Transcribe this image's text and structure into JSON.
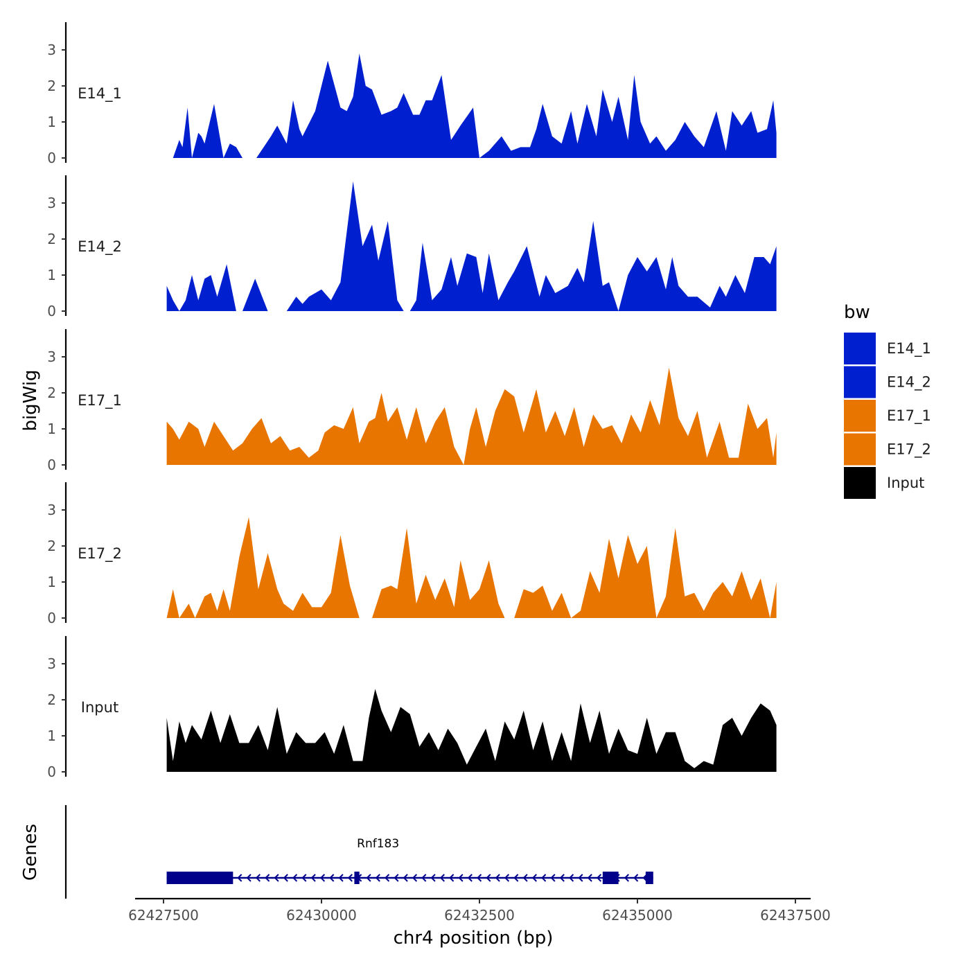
{
  "chart_data": {
    "type": "area",
    "xlabel": "chr4 position (bp)",
    "ylabel": "bigWig",
    "gene_panel_label": "Genes",
    "xlim": [
      62427250,
      62437600
    ],
    "x_ticks": [
      62427500,
      62430000,
      62432500,
      62435000,
      62437500
    ],
    "x_tick_labels": [
      "62427500",
      "62430000",
      "62432500",
      "62435000",
      "62437500"
    ],
    "ylim": [
      0,
      3.7
    ],
    "y_ticks": [
      0,
      1,
      2,
      3
    ],
    "y_tick_labels": [
      "0",
      "1",
      "2",
      "3"
    ],
    "legend": {
      "title": "bw",
      "position": "right",
      "entries": [
        "E14_1",
        "E14_2",
        "E17_1",
        "E17_2",
        "Input"
      ]
    },
    "colors": {
      "E14_1": "#0020d0",
      "E14_2": "#0020d0",
      "E17_1": "#e87500",
      "E17_2": "#e87500",
      "Input": "#000000",
      "gene": "#00008b"
    },
    "series": [
      {
        "name": "E14_1",
        "x": [
          62427650,
          62427750,
          62427800,
          62427880,
          62427950,
          62428050,
          62428100,
          62428150,
          62428300,
          62428450,
          62428550,
          62428650,
          62428750,
          62428850,
          62428920,
          62428970,
          62429200,
          62429300,
          62429450,
          62429550,
          62429650,
          62429700,
          62429900,
          62430100,
          62430300,
          62430400,
          62430500,
          62430600,
          62430700,
          62430800,
          62430950,
          62431100,
          62431200,
          62431300,
          62431450,
          62431550,
          62431650,
          62431750,
          62431900,
          62432050,
          62432200,
          62432400,
          62432500,
          62432650,
          62432850,
          62433000,
          62433150,
          62433300,
          62433400,
          62433500,
          62433650,
          62433800,
          62433950,
          62434050,
          62434200,
          62434350,
          62434450,
          62434600,
          62434700,
          62434850,
          62434950,
          62435050,
          62435200,
          62435300,
          62435450,
          62435600,
          62435750,
          62435900,
          62436050,
          62436250,
          62436400,
          62436500,
          62436650,
          62436800,
          62436900,
          62437050,
          62437150,
          62437200
        ],
        "y": [
          0,
          0.5,
          0.3,
          1.4,
          0,
          0.7,
          0.6,
          0.4,
          1.5,
          0,
          0.4,
          0.3,
          0,
          0,
          0,
          0,
          0.6,
          0.9,
          0.4,
          1.6,
          0.8,
          0.6,
          1.3,
          2.7,
          1.4,
          1.3,
          1.7,
          2.9,
          2.0,
          1.9,
          1.2,
          1.3,
          1.4,
          1.8,
          1.2,
          1.2,
          1.6,
          1.6,
          2.3,
          0.5,
          0.9,
          1.4,
          0,
          0.2,
          0.6,
          0.2,
          0.3,
          0.3,
          0.8,
          1.5,
          0.6,
          0.4,
          1.3,
          0.4,
          1.5,
          0.6,
          1.9,
          1.0,
          1.7,
          0.5,
          2.3,
          1.0,
          0.4,
          0.6,
          0.2,
          0.5,
          1.0,
          0.6,
          0.3,
          1.3,
          0.2,
          1.3,
          0.9,
          1.3,
          0.7,
          0.8,
          1.6,
          0.7
        ]
      },
      {
        "name": "E14_2",
        "x": [
          62427550,
          62427650,
          62427750,
          62427850,
          62427950,
          62428050,
          62428150,
          62428250,
          62428350,
          62428500,
          62428650,
          62428750,
          62428950,
          62429150,
          62429350,
          62429450,
          62429600,
          62429700,
          62429800,
          62430000,
          62430150,
          62430300,
          62430500,
          62430650,
          62430800,
          62430900,
          62431050,
          62431200,
          62431300,
          62431400,
          62431500,
          62431600,
          62431750,
          62431900,
          62432050,
          62432150,
          62432300,
          62432450,
          62432550,
          62432650,
          62432800,
          62432950,
          62433050,
          62433250,
          62433450,
          62433550,
          62433700,
          62433900,
          62434050,
          62434150,
          62434300,
          62434450,
          62434550,
          62434700,
          62434850,
          62435000,
          62435150,
          62435300,
          62435450,
          62435550,
          62435650,
          62435800,
          62435950,
          62436150,
          62436300,
          62436400,
          62436550,
          62436700,
          62436850,
          62437000,
          62437100,
          62437200
        ],
        "y": [
          0.7,
          0.3,
          0,
          0.3,
          1.0,
          0.3,
          0.9,
          1.0,
          0.4,
          1.3,
          0,
          0,
          0.9,
          0,
          0,
          0,
          0.4,
          0.2,
          0.4,
          0.6,
          0.3,
          0.8,
          3.6,
          1.8,
          2.4,
          1.4,
          2.5,
          0.3,
          0,
          0,
          0.3,
          1.9,
          0.3,
          0.6,
          1.5,
          0.7,
          1.6,
          1.5,
          0.5,
          1.6,
          0.3,
          0.8,
          1.1,
          1.8,
          0.4,
          1.0,
          0.5,
          0.7,
          1.2,
          0.8,
          2.5,
          0.7,
          0.8,
          0,
          1.0,
          1.5,
          1.1,
          1.5,
          0.6,
          1.5,
          0.7,
          0.4,
          0.4,
          0.1,
          0.7,
          0.4,
          1.0,
          0.5,
          1.5,
          1.5,
          1.3,
          1.8
        ]
      },
      {
        "name": "E17_1",
        "x": [
          62427550,
          62427650,
          62427750,
          62427900,
          62428050,
          62428150,
          62428300,
          62428450,
          62428600,
          62428750,
          62428900,
          62429050,
          62429200,
          62429350,
          62429500,
          62429650,
          62429800,
          62429950,
          62430050,
          62430200,
          62430350,
          62430500,
          62430600,
          62430750,
          62430850,
          62430950,
          62431050,
          62431200,
          62431350,
          62431500,
          62431650,
          62431800,
          62431950,
          62432100,
          62432250,
          62432350,
          62432450,
          62432600,
          62432750,
          62432900,
          62433050,
          62433200,
          62433400,
          62433550,
          62433700,
          62433850,
          62434000,
          62434150,
          62434300,
          62434450,
          62434600,
          62434750,
          62434900,
          62435050,
          62435200,
          62435350,
          62435500,
          62435650,
          62435800,
          62435950,
          62436100,
          62436300,
          62436450,
          62436600,
          62436750,
          62436900,
          62437050,
          62437150,
          62437200
        ],
        "y": [
          1.2,
          1.0,
          0.7,
          1.2,
          1.0,
          0.5,
          1.2,
          0.8,
          0.4,
          0.6,
          1.0,
          1.3,
          0.6,
          0.8,
          0.4,
          0.5,
          0.2,
          0.4,
          0.9,
          1.1,
          1.0,
          1.6,
          0.6,
          1.2,
          1.3,
          2.0,
          1.2,
          1.6,
          0.7,
          1.6,
          0.6,
          1.2,
          1.6,
          0.5,
          0,
          1.0,
          1.6,
          0.5,
          1.5,
          2.1,
          1.9,
          0.9,
          2.1,
          0.9,
          1.5,
          0.8,
          1.6,
          0.5,
          1.4,
          1.0,
          1.1,
          0.6,
          1.4,
          0.9,
          1.8,
          1.1,
          2.7,
          1.3,
          0.8,
          1.5,
          0.2,
          1.2,
          0.2,
          0.2,
          1.7,
          1.0,
          1.3,
          0.2,
          0.9
        ]
      },
      {
        "name": "E17_2",
        "x": [
          62427550,
          62427650,
          62427750,
          62427900,
          62428000,
          62428150,
          62428250,
          62428350,
          62428450,
          62428550,
          62428700,
          62428850,
          62429000,
          62429150,
          62429300,
          62429400,
          62429550,
          62429700,
          62429850,
          62430000,
          62430150,
          62430300,
          62430450,
          62430600,
          62430800,
          62430950,
          62431100,
          62431200,
          62431350,
          62431500,
          62431650,
          62431800,
          62431950,
          62432100,
          62432200,
          62432350,
          62432500,
          62432650,
          62432800,
          62432900,
          62433050,
          62433200,
          62433350,
          62433500,
          62433650,
          62433800,
          62433950,
          62434100,
          62434250,
          62434400,
          62434550,
          62434700,
          62434850,
          62435000,
          62435150,
          62435300,
          62435450,
          62435600,
          62435750,
          62435900,
          62436050,
          62436200,
          62436350,
          62436500,
          62436650,
          62436800,
          62436950,
          62437100,
          62437200
        ],
        "y": [
          0,
          0.8,
          0,
          0.4,
          0,
          0.6,
          0.7,
          0.2,
          0.8,
          0.2,
          1.7,
          2.8,
          0.8,
          1.8,
          0.8,
          0.4,
          0.2,
          0.7,
          0.3,
          0.3,
          0.7,
          2.3,
          0.9,
          0,
          0,
          0.8,
          0.9,
          0.8,
          2.5,
          0.4,
          1.2,
          0.5,
          1.1,
          0.3,
          1.6,
          0.5,
          0.8,
          1.6,
          0.4,
          0,
          0,
          0.8,
          0.7,
          0.9,
          0.2,
          0.7,
          0,
          0.2,
          1.3,
          0.7,
          2.2,
          1.1,
          2.3,
          1.5,
          2.0,
          0,
          0.6,
          2.5,
          0.6,
          0.7,
          0.2,
          0.7,
          1.0,
          0.6,
          1.3,
          0.5,
          1.1,
          0,
          1.0
        ]
      },
      {
        "name": "Input",
        "x": [
          62427550,
          62427650,
          62427750,
          62427850,
          62427950,
          62428100,
          62428250,
          62428400,
          62428550,
          62428700,
          62428850,
          62429000,
          62429150,
          62429300,
          62429450,
          62429600,
          62429750,
          62429900,
          62430050,
          62430200,
          62430350,
          62430500,
          62430650,
          62430750,
          62430850,
          62430950,
          62431100,
          62431250,
          62431400,
          62431550,
          62431700,
          62431850,
          62432000,
          62432150,
          62432300,
          62432450,
          62432600,
          62432750,
          62432900,
          62433050,
          62433200,
          62433350,
          62433500,
          62433650,
          62433800,
          62433950,
          62434100,
          62434250,
          62434400,
          62434550,
          62434700,
          62434850,
          62435000,
          62435150,
          62435300,
          62435450,
          62435600,
          62435750,
          62435900,
          62436050,
          62436200,
          62436350,
          62436500,
          62436650,
          62436800,
          62436950,
          62437100,
          62437200
        ],
        "y": [
          1.5,
          0.3,
          1.4,
          0.8,
          1.3,
          0.9,
          1.7,
          0.8,
          1.6,
          0.8,
          0.8,
          1.3,
          0.6,
          1.8,
          0.5,
          1.1,
          0.8,
          0.8,
          1.1,
          0.5,
          1.3,
          0.3,
          0.3,
          1.5,
          2.3,
          1.7,
          1.1,
          1.8,
          1.6,
          0.7,
          1.1,
          0.6,
          1.2,
          0.8,
          0.2,
          0.7,
          1.2,
          0.3,
          1.4,
          0.9,
          1.7,
          0.6,
          1.4,
          0.3,
          1.1,
          0.3,
          1.9,
          0.8,
          1.7,
          0.5,
          1.2,
          0.6,
          0.5,
          1.5,
          0.5,
          1.1,
          1.1,
          0.3,
          0.1,
          0.3,
          0.2,
          1.3,
          1.5,
          1.0,
          1.5,
          1.9,
          1.7,
          1.3
        ]
      }
    ],
    "gene": {
      "name": "Rnf183",
      "strand": "-",
      "start": 62427550,
      "end": 62435250,
      "exons": [
        [
          62427550,
          62428600
        ],
        [
          62430520,
          62430600
        ],
        [
          62434450,
          62434700
        ],
        [
          62435130,
          62435250
        ]
      ]
    }
  }
}
